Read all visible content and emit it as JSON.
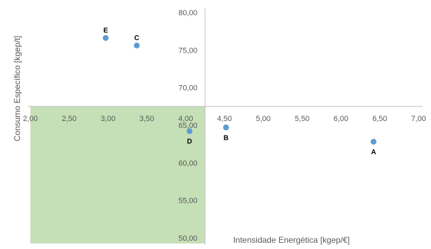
{
  "chart_data": {
    "type": "scatter",
    "title": "",
    "xlabel": "Intensidade Energética [kgep/€]",
    "ylabel": "Consumo Específico [kgep/t]",
    "xlim": [
      2.0,
      7.0
    ],
    "ylim": [
      50.0,
      80.0
    ],
    "axis_crossing": {
      "x": 4.25,
      "y": 67.5
    },
    "x_ticks": [
      "2,00",
      "2,50",
      "3,00",
      "3,50",
      "4,00",
      "4,50",
      "5,00",
      "5,50",
      "6,00",
      "6,50",
      "7,00"
    ],
    "y_ticks": [
      "50,00",
      "55,00",
      "60,00",
      "65,00",
      "70,00",
      "75,00",
      "80,00"
    ],
    "grid": false,
    "legend": "none",
    "highlight_region": {
      "x": [
        2.0,
        4.25
      ],
      "y": [
        50.0,
        67.5
      ],
      "color": "#c5dfb6"
    },
    "colors": {
      "marker": "#5b9bd5",
      "axis": "#bfbfbf",
      "tick_text": "#595959"
    },
    "points": [
      {
        "label": "A",
        "x": 6.42,
        "y": 62.8
      },
      {
        "label": "B",
        "x": 4.52,
        "y": 64.7
      },
      {
        "label": "C",
        "x": 3.37,
        "y": 75.6
      },
      {
        "label": "D",
        "x": 4.05,
        "y": 64.2
      },
      {
        "label": "E",
        "x": 2.97,
        "y": 76.6
      }
    ]
  }
}
